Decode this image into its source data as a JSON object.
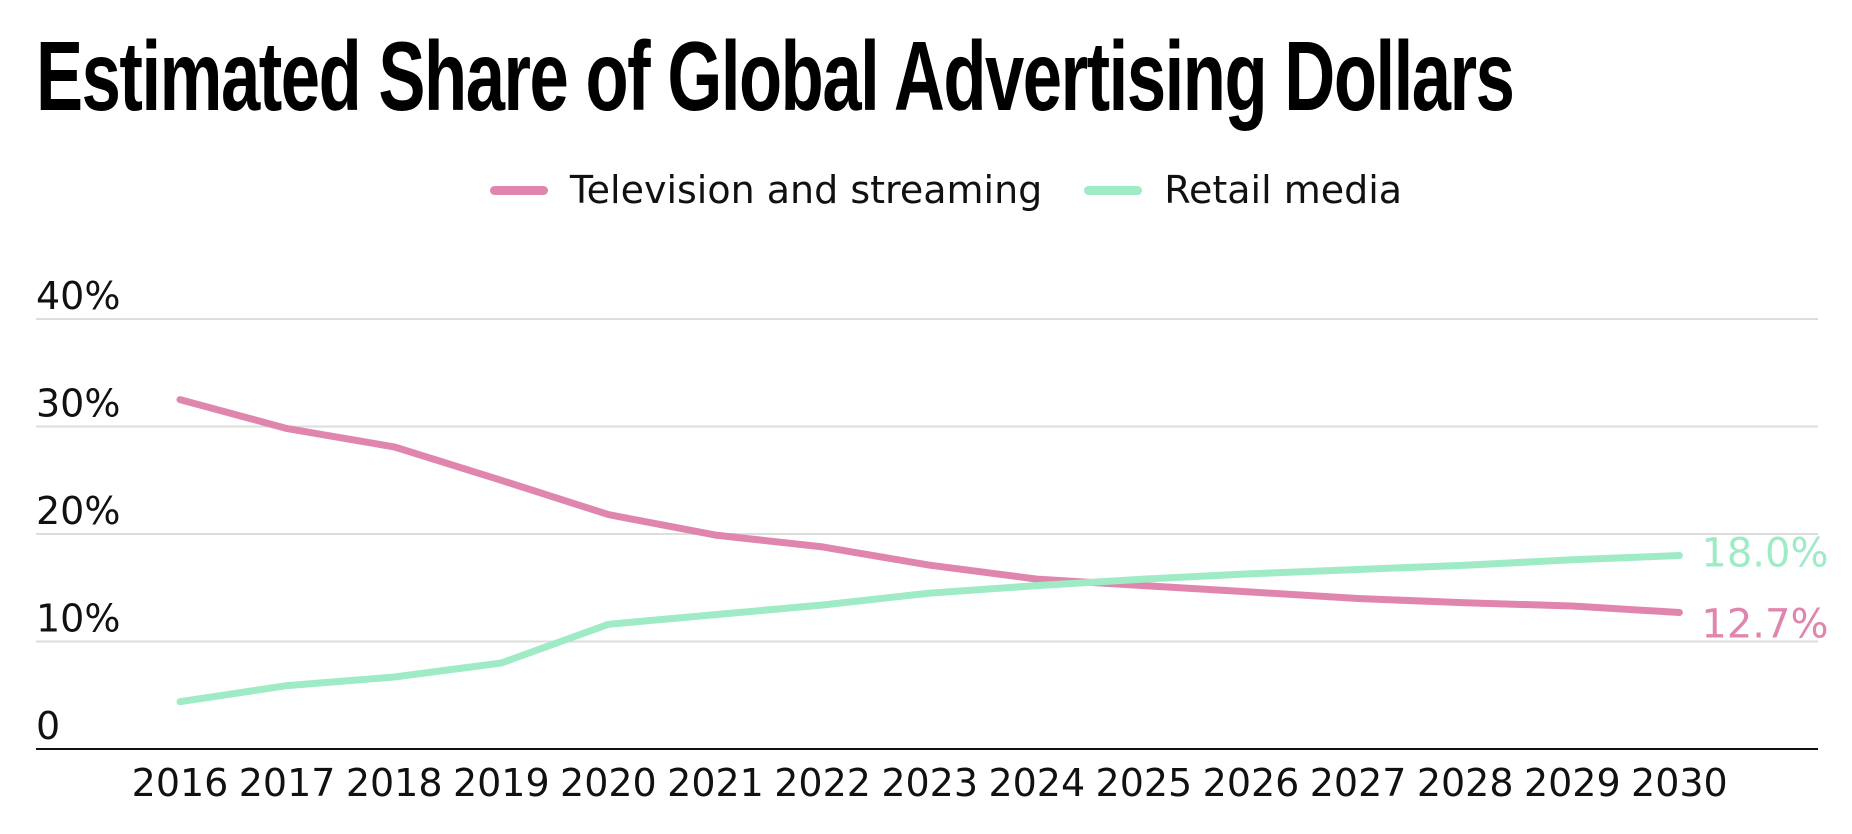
{
  "chart_data": {
    "type": "line",
    "title": "Estimated Share of Global Advertising Dollars",
    "x": [
      "2016",
      "2017",
      "2018",
      "2019",
      "2020",
      "2021",
      "2022",
      "2023",
      "2024",
      "2025",
      "2026",
      "2027",
      "2028",
      "2029",
      "2030"
    ],
    "y_ticks": [
      "0",
      "10%",
      "20%",
      "30%",
      "40%"
    ],
    "y_tick_values": [
      0,
      10,
      20,
      30,
      40
    ],
    "ylim": [
      0,
      40
    ],
    "grid": true,
    "legend_position": "top-center",
    "series": [
      {
        "name": "Television and streaming",
        "color": "#e086ae",
        "values": [
          32.5,
          29.8,
          28.1,
          25.0,
          21.8,
          19.9,
          18.8,
          17.1,
          15.8,
          15.2,
          14.6,
          14.0,
          13.6,
          13.3,
          12.7
        ],
        "end_label": "12.7%"
      },
      {
        "name": "Retail media",
        "color": "#9eebc6",
        "values": [
          4.4,
          5.9,
          6.7,
          8.0,
          11.6,
          12.5,
          13.4,
          14.5,
          15.2,
          15.8,
          16.3,
          16.7,
          17.1,
          17.6,
          18.0
        ],
        "end_label": "18.0%"
      }
    ]
  }
}
